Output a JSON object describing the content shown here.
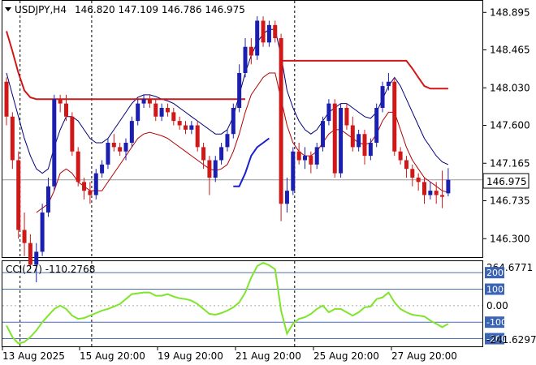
{
  "header": {
    "symbol": "USDJPY,H4",
    "ohlc": "146.820 147.109 146.786 146.975"
  },
  "cci_panel": {
    "label": "CCI(27) -110.2768",
    "top_value": "264.6771",
    "bottom_value": "-241.6297",
    "levels": [
      {
        "label": "200",
        "value": 200,
        "badge": true
      },
      {
        "label": "100",
        "value": 100,
        "badge": true
      },
      {
        "label": "0.00",
        "value": 0,
        "badge": false
      },
      {
        "label": "-100",
        "value": -100,
        "badge": true
      },
      {
        "label": "-200",
        "value": -200,
        "badge": true
      }
    ]
  },
  "colors": {
    "bull": "#1b1fb0",
    "bear": "#d01818",
    "upper_band": "#00007a",
    "lower_band": "#b30000",
    "resistance": "#d01818",
    "support": "#1b1fd0",
    "cci": "#7fe52a",
    "grid": "#999999",
    "badge": "#3c64b4"
  },
  "chart_data": {
    "type": "candlestick",
    "price_axis": {
      "ylim": [
        146.2,
        149.0
      ],
      "ticks": [
        "148.895",
        "148.465",
        "148.030",
        "147.600",
        "147.165",
        "146.735",
        "146.300"
      ],
      "current_price": "146.975"
    },
    "x_axis": {
      "tick_labels": [
        "13 Aug 2025",
        "15 Aug 20:00",
        "19 Aug 20:00",
        "21 Aug 20:00",
        "25 Aug 20:00",
        "27 Aug 20:00"
      ],
      "separators": [
        2,
        14,
        48
      ]
    },
    "candles": [
      [
        148.1,
        147.7,
        148.15,
        147.6
      ],
      [
        147.7,
        147.2,
        147.75,
        147.1
      ],
      [
        147.2,
        146.4,
        147.3,
        146.3
      ],
      [
        146.4,
        146.25,
        146.6,
        146.1
      ],
      [
        146.25,
        146.0,
        146.35,
        145.95
      ],
      [
        146.0,
        146.15,
        146.25,
        145.8
      ],
      [
        146.15,
        146.6,
        146.7,
        146.1
      ],
      [
        146.6,
        146.9,
        147.0,
        146.55
      ],
      [
        146.9,
        147.9,
        147.95,
        146.85
      ],
      [
        147.9,
        147.85,
        147.95,
        147.75
      ],
      [
        147.85,
        147.7,
        147.95,
        147.65
      ],
      [
        147.7,
        147.3,
        147.75,
        147.25
      ],
      [
        147.3,
        146.95,
        147.35,
        146.9
      ],
      [
        146.95,
        146.85,
        147.0,
        146.75
      ],
      [
        146.85,
        146.8,
        146.95,
        146.7
      ],
      [
        146.8,
        147.05,
        147.1,
        146.75
      ],
      [
        147.05,
        147.15,
        147.2,
        147.0
      ],
      [
        147.15,
        147.4,
        147.45,
        147.1
      ],
      [
        147.4,
        147.35,
        147.5,
        147.3
      ],
      [
        147.35,
        147.3,
        147.4,
        147.25
      ],
      [
        147.3,
        147.4,
        147.45,
        147.2
      ],
      [
        147.4,
        147.65,
        147.7,
        147.35
      ],
      [
        147.65,
        147.85,
        147.9,
        147.6
      ],
      [
        147.85,
        147.9,
        147.95,
        147.8
      ],
      [
        147.9,
        147.85,
        147.95,
        147.8
      ],
      [
        147.85,
        147.7,
        147.9,
        147.65
      ],
      [
        147.7,
        147.8,
        147.85,
        147.65
      ],
      [
        147.8,
        147.75,
        147.85,
        147.7
      ],
      [
        147.75,
        147.65,
        147.8,
        147.6
      ],
      [
        147.65,
        147.6,
        147.7,
        147.55
      ],
      [
        147.6,
        147.55,
        147.65,
        147.5
      ],
      [
        147.55,
        147.6,
        147.65,
        147.5
      ],
      [
        147.6,
        147.35,
        147.65,
        147.3
      ],
      [
        147.35,
        147.2,
        147.4,
        147.1
      ],
      [
        147.2,
        147.0,
        147.25,
        146.8
      ],
      [
        147.0,
        147.2,
        147.25,
        146.95
      ],
      [
        147.2,
        147.35,
        147.4,
        147.15
      ],
      [
        147.35,
        147.5,
        147.55,
        147.3
      ],
      [
        147.5,
        147.8,
        147.85,
        147.45
      ],
      [
        147.8,
        148.2,
        148.3,
        147.75
      ],
      [
        148.2,
        148.5,
        148.6,
        148.15
      ],
      [
        148.5,
        148.4,
        148.6,
        148.3
      ],
      [
        148.4,
        148.8,
        148.85,
        148.35
      ],
      [
        148.8,
        148.55,
        148.85,
        148.5
      ],
      [
        148.55,
        148.75,
        148.8,
        148.5
      ],
      [
        148.75,
        148.6,
        148.8,
        148.55
      ],
      [
        148.6,
        146.7,
        148.65,
        146.5
      ],
      [
        146.7,
        146.85,
        147.0,
        146.6
      ],
      [
        146.85,
        147.3,
        147.35,
        146.8
      ],
      [
        147.3,
        147.2,
        147.4,
        147.15
      ],
      [
        147.2,
        147.25,
        147.35,
        147.1
      ],
      [
        147.25,
        147.15,
        147.3,
        147.05
      ],
      [
        147.15,
        147.35,
        147.4,
        147.1
      ],
      [
        147.35,
        147.65,
        147.7,
        147.3
      ],
      [
        147.65,
        147.85,
        147.9,
        147.6
      ],
      [
        147.85,
        147.05,
        147.9,
        147.0
      ],
      [
        147.05,
        147.8,
        147.85,
        147.0
      ],
      [
        147.8,
        147.6,
        147.85,
        147.55
      ],
      [
        147.6,
        147.35,
        147.7,
        147.3
      ],
      [
        147.35,
        147.5,
        147.55,
        147.3
      ],
      [
        147.5,
        147.25,
        147.55,
        147.15
      ],
      [
        147.25,
        147.4,
        147.45,
        147.2
      ],
      [
        147.4,
        147.8,
        147.85,
        147.35
      ],
      [
        147.8,
        148.05,
        148.1,
        147.75
      ],
      [
        148.05,
        148.1,
        148.2,
        148.0
      ],
      [
        148.1,
        147.3,
        148.15,
        147.25
      ],
      [
        147.3,
        147.2,
        147.35,
        147.15
      ],
      [
        147.2,
        147.1,
        147.25,
        147.0
      ],
      [
        147.1,
        147.0,
        147.15,
        146.9
      ],
      [
        147.0,
        146.95,
        147.05,
        146.85
      ],
      [
        146.95,
        146.8,
        147.0,
        146.7
      ],
      [
        146.8,
        146.85,
        146.95,
        146.75
      ],
      [
        146.85,
        146.8,
        146.95,
        146.7
      ],
      [
        146.8,
        146.78,
        147.08,
        146.65
      ],
      [
        146.82,
        146.975,
        147.109,
        146.786
      ]
    ],
    "series": [
      {
        "name": "upper_band",
        "values": [
          148.2,
          147.95,
          147.7,
          147.45,
          147.25,
          147.1,
          147.05,
          147.1,
          147.35,
          147.55,
          147.7,
          147.7,
          147.65,
          147.55,
          147.45,
          147.4,
          147.4,
          147.45,
          147.55,
          147.65,
          147.75,
          147.85,
          147.92,
          147.95,
          147.95,
          147.93,
          147.9,
          147.88,
          147.85,
          147.8,
          147.75,
          147.7,
          147.65,
          147.6,
          147.55,
          147.5,
          147.5,
          147.55,
          147.7,
          147.95,
          148.2,
          148.4,
          148.55,
          148.65,
          148.7,
          148.7,
          148.4,
          148.0,
          147.8,
          147.65,
          147.55,
          147.5,
          147.55,
          147.65,
          147.75,
          147.8,
          147.85,
          147.85,
          147.8,
          147.75,
          147.7,
          147.68,
          147.75,
          147.9,
          148.05,
          148.15,
          148.05,
          147.9,
          147.75,
          147.6,
          147.45,
          147.35,
          147.25,
          147.18,
          147.15
        ]
      },
      {
        "name": "lower_band",
        "values": [
          null,
          null,
          null,
          null,
          null,
          146.6,
          146.65,
          146.7,
          146.85,
          147.05,
          147.1,
          147.05,
          146.95,
          146.9,
          146.85,
          146.85,
          146.85,
          146.95,
          147.05,
          147.15,
          147.25,
          147.35,
          147.45,
          147.5,
          147.52,
          147.5,
          147.48,
          147.45,
          147.4,
          147.35,
          147.3,
          147.25,
          147.2,
          147.15,
          147.1,
          147.08,
          147.1,
          147.15,
          147.3,
          147.5,
          147.75,
          147.95,
          148.05,
          148.15,
          148.2,
          148.2,
          147.9,
          147.6,
          147.4,
          147.3,
          147.25,
          147.25,
          147.3,
          147.4,
          147.5,
          147.55,
          147.55,
          147.5,
          147.45,
          147.4,
          147.38,
          147.4,
          147.5,
          147.65,
          147.75,
          147.75,
          147.55,
          147.35,
          147.2,
          147.1,
          147.0,
          146.95,
          146.9,
          146.85,
          146.83
        ]
      },
      {
        "name": "resistance",
        "values": [
          148.68,
          148.45,
          148.2,
          148.0,
          147.92,
          147.9,
          147.9,
          147.9,
          147.9,
          147.9,
          147.9,
          147.9,
          147.9,
          147.9,
          147.9,
          147.9,
          147.9,
          147.9,
          147.9,
          147.9,
          147.9,
          147.9,
          147.9,
          147.9,
          147.9,
          147.9,
          147.9,
          147.9,
          147.9,
          147.9,
          147.9,
          147.9,
          147.9,
          147.9,
          147.9,
          147.9,
          147.9,
          147.9,
          147.9,
          147.9,
          147.9,
          null,
          null,
          null,
          null,
          null,
          148.34,
          148.34,
          148.34,
          148.34,
          148.34,
          148.34,
          148.34,
          148.34,
          148.34,
          148.34,
          148.34,
          148.34,
          148.34,
          148.34,
          148.34,
          148.34,
          148.34,
          148.34,
          148.34,
          148.34,
          148.34,
          148.34,
          148.25,
          148.15,
          148.05,
          148.02,
          148.02,
          148.02,
          148.02
        ]
      },
      {
        "name": "support",
        "values": [
          null,
          null,
          null,
          null,
          null,
          null,
          null,
          null,
          null,
          null,
          null,
          null,
          null,
          null,
          null,
          null,
          null,
          null,
          null,
          null,
          null,
          null,
          null,
          null,
          null,
          null,
          null,
          null,
          null,
          null,
          null,
          null,
          null,
          null,
          null,
          null,
          null,
          null,
          146.9,
          146.9,
          147.05,
          147.25,
          147.35,
          147.4,
          147.45,
          null,
          null,
          null,
          null,
          null,
          null,
          null,
          null,
          null,
          null,
          null,
          null,
          null,
          null,
          null,
          null,
          null,
          null,
          null,
          null,
          null,
          null,
          null,
          null,
          null,
          null,
          null,
          null,
          null,
          null
        ]
      },
      {
        "name": "cci",
        "values": [
          -120,
          -190,
          -230,
          -220,
          -190,
          -150,
          -100,
          -60,
          -20,
          0,
          -20,
          -60,
          -80,
          -75,
          -60,
          -45,
          -30,
          -20,
          -5,
          10,
          40,
          70,
          75,
          80,
          80,
          60,
          60,
          70,
          55,
          45,
          40,
          30,
          10,
          -20,
          -50,
          -55,
          -45,
          -30,
          -10,
          20,
          80,
          170,
          240,
          260,
          245,
          220,
          -30,
          -170,
          -110,
          -80,
          -70,
          -50,
          -20,
          0,
          -40,
          -20,
          -20,
          -40,
          -60,
          -40,
          -10,
          -5,
          40,
          50,
          80,
          20,
          -20,
          -40,
          -55,
          -60,
          -65,
          -90,
          -110,
          -130,
          -110
        ]
      }
    ]
  }
}
